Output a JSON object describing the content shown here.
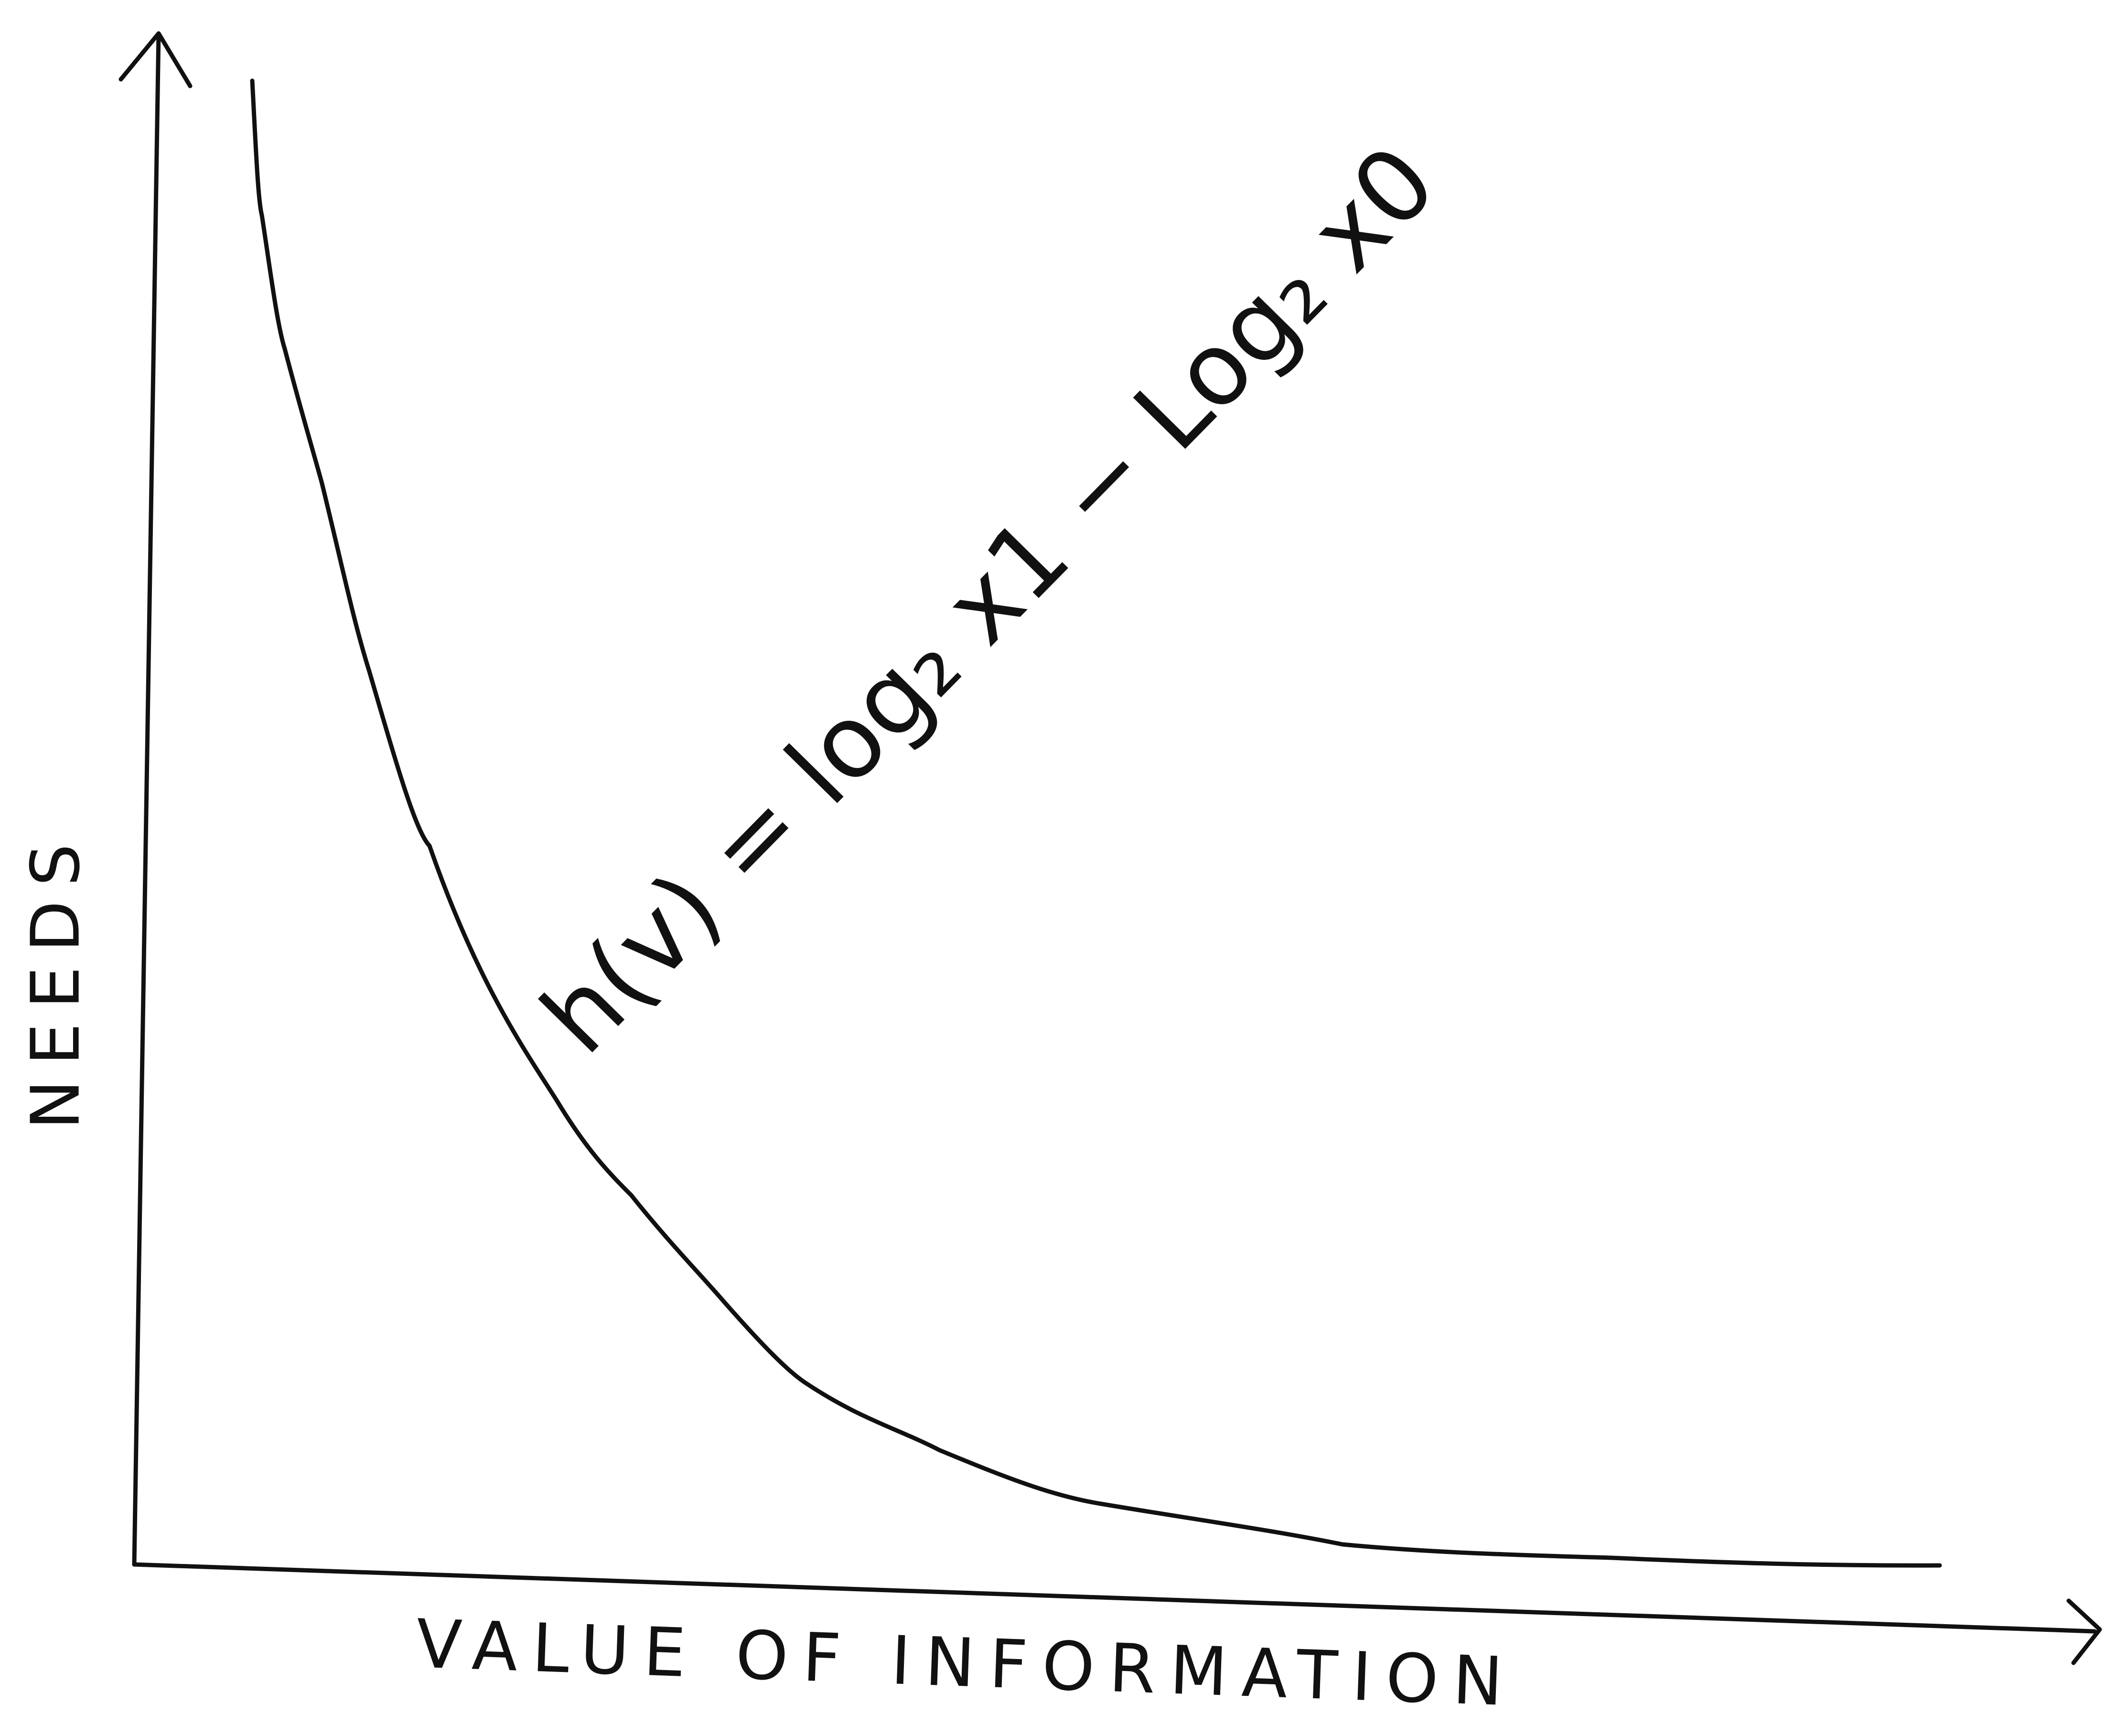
{
  "y_axis_label": "NEEDS",
  "x_axis_label": "VALUE OF INFORMATION",
  "annotation": "h(v) = log₂ x1 − Log₂ x0"
}
